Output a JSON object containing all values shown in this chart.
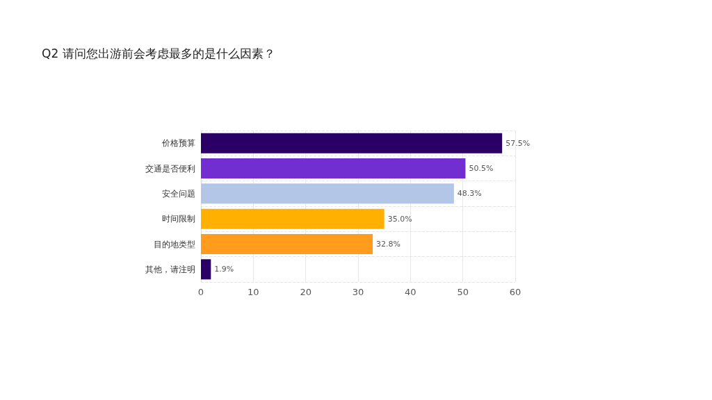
{
  "chart_data": {
    "type": "bar",
    "orientation": "horizontal",
    "title": "Q2 请问您出游前会考虑最多的是什么因素？",
    "categories": [
      "价格预算",
      "交通是否便利",
      "安全问题",
      "时间限制",
      "目的地类型",
      "其他，请注明"
    ],
    "values": [
      57.5,
      50.5,
      48.3,
      35.0,
      32.8,
      1.9
    ],
    "colors": [
      "#2b0066",
      "#722ed1",
      "#b4c6e7",
      "#ffb000",
      "#ff9c1e",
      "#2b0066"
    ],
    "value_labels": [
      "57.5%",
      "50.5%",
      "48.3%",
      "35.0%",
      "32.8%",
      "1.9%"
    ],
    "xlim": [
      0,
      60
    ],
    "xticks": [
      0,
      10,
      20,
      30,
      40,
      50,
      60
    ],
    "grid": true
  }
}
